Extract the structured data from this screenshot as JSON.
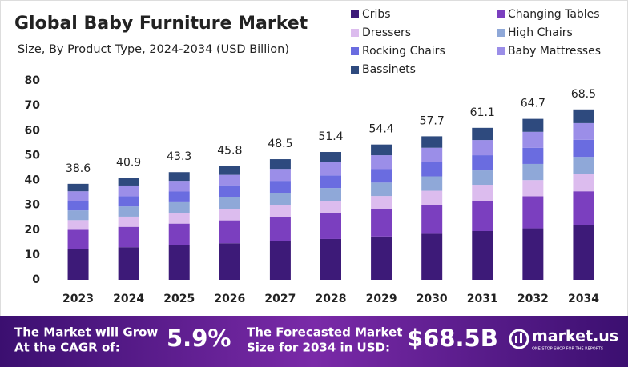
{
  "chart_data": {
    "type": "stacked-bar",
    "title": "Global Baby Furniture Market",
    "subtitle": "Size, By Product Type, 2024-2034 (USD Billion)",
    "categories": [
      "2023",
      "2024",
      "2025",
      "2026",
      "2027",
      "2028",
      "2029",
      "2030",
      "2031",
      "2032",
      "2034"
    ],
    "series": [
      {
        "name": "Cribs",
        "color": "#3d1a78",
        "values": [
          12.4,
          13.1,
          13.9,
          14.7,
          15.5,
          16.4,
          17.4,
          18.5,
          19.6,
          20.7,
          21.9
        ]
      },
      {
        "name": "Changing Tables",
        "color": "#7b3fbf",
        "values": [
          7.7,
          8.2,
          8.7,
          9.2,
          9.7,
          10.3,
          10.9,
          11.5,
          12.2,
          12.9,
          13.7
        ]
      },
      {
        "name": "Dressers",
        "color": "#dcbcee",
        "values": [
          3.9,
          4.1,
          4.3,
          4.6,
          4.9,
          5.1,
          5.4,
          5.8,
          6.1,
          6.5,
          6.9
        ]
      },
      {
        "name": "High Chairs",
        "color": "#8fa8d8",
        "values": [
          3.9,
          4.1,
          4.3,
          4.6,
          4.9,
          5.1,
          5.4,
          5.8,
          6.1,
          6.5,
          6.9
        ]
      },
      {
        "name": "Rocking Chairs",
        "color": "#6a6ce0",
        "values": [
          3.9,
          4.1,
          4.3,
          4.6,
          4.8,
          5.1,
          5.4,
          5.8,
          6.1,
          6.5,
          6.9
        ]
      },
      {
        "name": "Baby Mattresses",
        "color": "#9b8ee8",
        "values": [
          3.8,
          4.0,
          4.3,
          4.5,
          4.8,
          5.3,
          5.6,
          5.7,
          6.1,
          6.4,
          6.7
        ]
      },
      {
        "name": "Bassinets",
        "color": "#2e4a7e",
        "values": [
          3.0,
          3.3,
          3.5,
          3.6,
          3.9,
          4.1,
          4.3,
          4.6,
          4.9,
          5.2,
          5.5
        ]
      }
    ],
    "totals": [
      38.6,
      40.9,
      43.3,
      45.8,
      48.5,
      51.4,
      54.4,
      57.7,
      61.1,
      64.7,
      68.5
    ],
    "ylim": [
      0,
      80
    ],
    "yticks": [
      0,
      10,
      20,
      30,
      40,
      50,
      60,
      70,
      80
    ],
    "grid": false
  },
  "footer": {
    "cagr_text": [
      "The Market will Grow",
      "At the CAGR of:"
    ],
    "cagr_value": "5.9%",
    "forecast_text": [
      "The Forecasted Market",
      "Size for 2034 in USD:"
    ],
    "forecast_value": "$68.5B",
    "brand": "market.us",
    "tagline": "ONE STOP SHOP FOR THE REPORTS"
  }
}
